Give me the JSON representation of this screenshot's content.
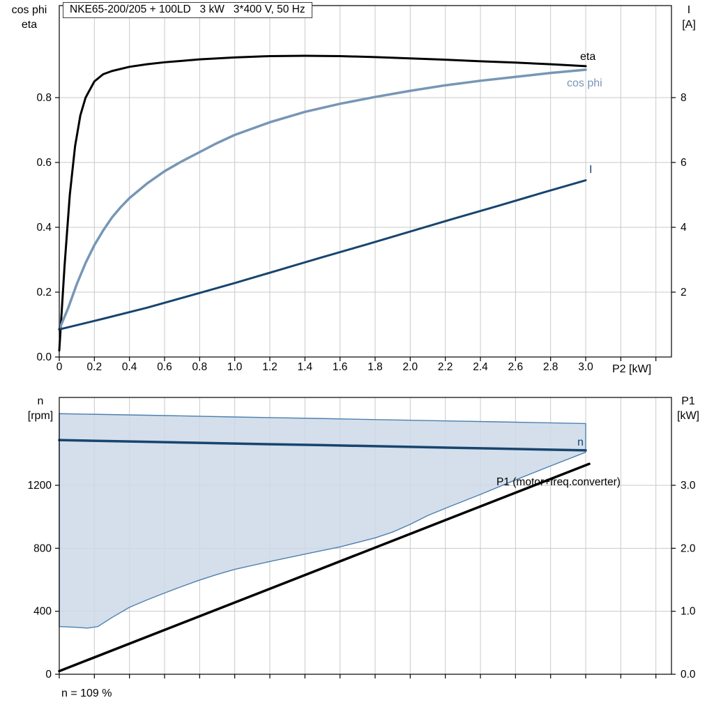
{
  "title": "NKE65-200/205 + 100LD   3 kW   3*400 V, 50 Hz",
  "labels": {
    "top_left_line1": "cos phi",
    "top_left_line2": "eta",
    "top_right_line1": "I",
    "top_right_line2": "[A]",
    "x_axis_label": "P2 [kW]",
    "bottom_left_line1": "n",
    "bottom_left_line2": "[rpm]",
    "bottom_right_line1": "P1",
    "bottom_right_line2": "[kW]",
    "annotation": "n = 109 %"
  },
  "colors": {
    "eta": "#000000",
    "cos_phi": "#7796b6",
    "current": "#17456e",
    "speed": "#17456e",
    "p1": "#000000",
    "band_fill": "#cdd9e8",
    "band_edge": "#4d7fae",
    "grid": "#c9c9c9",
    "axis": "#000000"
  },
  "chart_data": [
    {
      "type": "line",
      "title": "NKE65-200/205 + 100LD   3 kW   3*400 V, 50 Hz",
      "xlabel": "P2 [kW]",
      "ylabel_left": "cos phi / eta",
      "ylabel_right": "I [A]",
      "xlim": [
        0,
        3.49
      ],
      "xticks": [
        0,
        0.2,
        0.4,
        0.6,
        0.8,
        1.0,
        1.2,
        1.4,
        1.6,
        1.8,
        2.0,
        2.2,
        2.4,
        2.6,
        2.8,
        3.0
      ],
      "xtick_labels": [
        "0",
        "0.2",
        "0.4",
        "0.6",
        "0.8",
        "1.0",
        "1.2",
        "1.4",
        "1.6",
        "1.8",
        "2.0",
        "2.2",
        "2.4",
        "2.6",
        "2.8",
        "3.0"
      ],
      "xgrid_extra": [
        3.2,
        3.4
      ],
      "ylim_left": [
        0,
        1.084
      ],
      "yticks_left": [
        0,
        0.2,
        0.4,
        0.6,
        0.8
      ],
      "ytick_left_labels": [
        "0.0",
        "0.2",
        "0.4",
        "0.6",
        "0.8"
      ],
      "ylim_right": [
        0,
        10.84
      ],
      "yticks_right": [
        2,
        4,
        6,
        8
      ],
      "ytick_right_labels": [
        "2",
        "4",
        "6",
        "8"
      ],
      "grid": true,
      "legend_position": "curve-end-labels",
      "series": [
        {
          "name": "eta",
          "axis": "left",
          "color": "#000000",
          "width": 3,
          "points": [
            [
              0,
              0.02
            ],
            [
              0.03,
              0.28
            ],
            [
              0.06,
              0.5
            ],
            [
              0.09,
              0.65
            ],
            [
              0.12,
              0.745
            ],
            [
              0.15,
              0.8
            ],
            [
              0.2,
              0.85
            ],
            [
              0.25,
              0.872
            ],
            [
              0.3,
              0.882
            ],
            [
              0.4,
              0.895
            ],
            [
              0.5,
              0.903
            ],
            [
              0.6,
              0.909
            ],
            [
              0.8,
              0.918
            ],
            [
              1.0,
              0.924
            ],
            [
              1.2,
              0.928
            ],
            [
              1.4,
              0.929
            ],
            [
              1.6,
              0.928
            ],
            [
              1.8,
              0.925
            ],
            [
              2.0,
              0.921
            ],
            [
              2.2,
              0.917
            ],
            [
              2.4,
              0.912
            ],
            [
              2.6,
              0.908
            ],
            [
              2.8,
              0.903
            ],
            [
              3.0,
              0.897
            ]
          ]
        },
        {
          "name": "cos phi",
          "axis": "left",
          "color": "#7796b6",
          "width": 3.5,
          "points": [
            [
              0,
              0.085
            ],
            [
              0.05,
              0.15
            ],
            [
              0.1,
              0.225
            ],
            [
              0.15,
              0.29
            ],
            [
              0.2,
              0.345
            ],
            [
              0.25,
              0.39
            ],
            [
              0.3,
              0.43
            ],
            [
              0.35,
              0.462
            ],
            [
              0.4,
              0.49
            ],
            [
              0.5,
              0.535
            ],
            [
              0.6,
              0.573
            ],
            [
              0.7,
              0.604
            ],
            [
              0.8,
              0.632
            ],
            [
              0.9,
              0.66
            ],
            [
              1.0,
              0.685
            ],
            [
              1.2,
              0.724
            ],
            [
              1.4,
              0.756
            ],
            [
              1.6,
              0.781
            ],
            [
              1.8,
              0.802
            ],
            [
              2.0,
              0.821
            ],
            [
              2.2,
              0.838
            ],
            [
              2.4,
              0.852
            ],
            [
              2.6,
              0.864
            ],
            [
              2.8,
              0.876
            ],
            [
              3.0,
              0.886
            ]
          ]
        },
        {
          "name": "I",
          "axis": "right",
          "color": "#17456e",
          "width": 3,
          "points": [
            [
              0,
              0.85
            ],
            [
              0.25,
              1.18
            ],
            [
              0.5,
              1.52
            ],
            [
              0.75,
              1.9
            ],
            [
              1.0,
              2.28
            ],
            [
              1.25,
              2.68
            ],
            [
              1.5,
              3.08
            ],
            [
              1.75,
              3.47
            ],
            [
              2.0,
              3.87
            ],
            [
              2.25,
              4.27
            ],
            [
              2.5,
              4.66
            ],
            [
              2.75,
              5.06
            ],
            [
              3.0,
              5.45
            ]
          ]
        }
      ]
    },
    {
      "type": "line+band",
      "title": "",
      "xlabel": "",
      "ylabel_left": "n [rpm]",
      "ylabel_right": "P1 [kW]",
      "xlim": [
        0,
        3.49
      ],
      "xticks": [
        0,
        0.2,
        0.4,
        0.6,
        0.8,
        1.0,
        1.2,
        1.4,
        1.6,
        1.8,
        2.0,
        2.2,
        2.4,
        2.6,
        2.8,
        3.0
      ],
      "xgrid_extra": [
        3.2,
        3.4
      ],
      "ylim_left": [
        0,
        1758
      ],
      "yticks_left": [
        0,
        400,
        800,
        1200
      ],
      "ytick_left_labels": [
        "0",
        "400",
        "800",
        "1200"
      ],
      "ylim_right": [
        0,
        4.39
      ],
      "yticks_right": [
        0,
        1.0,
        2.0,
        3.0
      ],
      "ytick_right_labels": [
        "0.0",
        "1.0",
        "2.0",
        "3.0"
      ],
      "grid": true,
      "annotation": "n = 109 %",
      "band": {
        "name": "speed-operating-range",
        "fill": "#cdd9e8",
        "edge": "#4d7fae",
        "upper": [
          [
            0,
            1655
          ],
          [
            0.5,
            1645
          ],
          [
            1.0,
            1634
          ],
          [
            1.5,
            1624
          ],
          [
            2.0,
            1613
          ],
          [
            2.5,
            1603
          ],
          [
            3.0,
            1592
          ]
        ],
        "lower": [
          [
            0,
            303
          ],
          [
            0.1,
            298
          ],
          [
            0.16,
            293
          ],
          [
            0.22,
            303
          ],
          [
            0.3,
            360
          ],
          [
            0.4,
            425
          ],
          [
            0.5,
            472
          ],
          [
            0.6,
            516
          ],
          [
            0.7,
            558
          ],
          [
            0.8,
            598
          ],
          [
            0.9,
            634
          ],
          [
            1.0,
            666
          ],
          [
            1.2,
            716
          ],
          [
            1.4,
            763
          ],
          [
            1.6,
            809
          ],
          [
            1.8,
            866
          ],
          [
            1.9,
            903
          ],
          [
            2.0,
            952
          ],
          [
            2.1,
            1008
          ],
          [
            2.2,
            1054
          ],
          [
            2.4,
            1142
          ],
          [
            2.6,
            1234
          ],
          [
            2.8,
            1323
          ],
          [
            3.0,
            1410
          ]
        ]
      },
      "series": [
        {
          "name": "n",
          "axis": "left",
          "color": "#17456e",
          "width": 3.5,
          "points": [
            [
              0,
              1487
            ],
            [
              0.5,
              1476
            ],
            [
              1.0,
              1465
            ],
            [
              1.5,
              1455
            ],
            [
              2.0,
              1444
            ],
            [
              2.5,
              1433
            ],
            [
              3.0,
              1422
            ]
          ]
        },
        {
          "name": "P1 (motor+freq.converter)",
          "axis": "right",
          "color": "#000000",
          "width": 3.5,
          "points": [
            [
              0,
              0.05
            ],
            [
              3.02,
              3.34
            ]
          ]
        }
      ]
    }
  ]
}
